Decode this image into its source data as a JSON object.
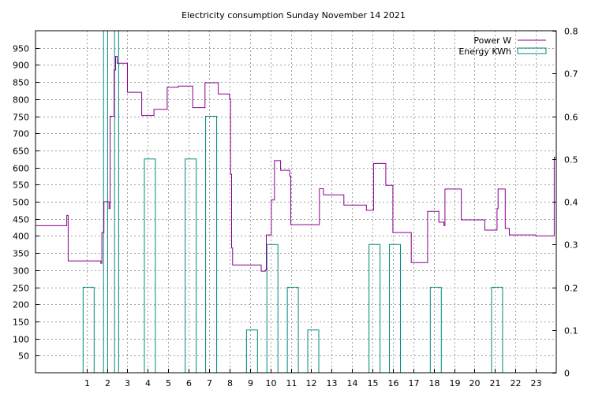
{
  "chart_data": {
    "type": "line",
    "title": "Electricity consumption Sunday November 14 2021",
    "x_ticks": [
      1,
      2,
      3,
      4,
      5,
      6,
      7,
      8,
      9,
      10,
      11,
      12,
      13,
      14,
      15,
      16,
      17,
      18,
      19,
      20,
      21,
      22,
      23
    ],
    "xlim": [
      -1.5,
      24.0
    ],
    "y_left": {
      "ticks": [
        50,
        100,
        150,
        200,
        250,
        300,
        350,
        400,
        450,
        500,
        550,
        600,
        650,
        700,
        750,
        800,
        850,
        900,
        950
      ],
      "ylim": [
        0,
        1000
      ]
    },
    "y_right": {
      "ticks": [
        "0",
        "0.1",
        "0.2",
        "0.3",
        "0.4",
        "0.5",
        "0.6",
        "0.7",
        "0.8"
      ],
      "ylim": [
        0,
        0.8
      ]
    },
    "grid": true,
    "legend_position": "top-right",
    "series": [
      {
        "name": "Power W",
        "axis": "left",
        "color": "#8B008B",
        "style": "step",
        "points": [
          [
            -1.5,
            430
          ],
          [
            0.03,
            430
          ],
          [
            0.03,
            460
          ],
          [
            0.1,
            460
          ],
          [
            0.1,
            327
          ],
          [
            1.7,
            327
          ],
          [
            1.7,
            320
          ],
          [
            1.75,
            320
          ],
          [
            1.75,
            410
          ],
          [
            1.85,
            410
          ],
          [
            1.85,
            500
          ],
          [
            2.1,
            500
          ],
          [
            2.1,
            480
          ],
          [
            2.15,
            480
          ],
          [
            2.15,
            750
          ],
          [
            2.35,
            750
          ],
          [
            2.35,
            885
          ],
          [
            2.42,
            885
          ],
          [
            2.42,
            925
          ],
          [
            2.5,
            925
          ],
          [
            2.5,
            905
          ],
          [
            3.0,
            905
          ],
          [
            3.0,
            820
          ],
          [
            3.7,
            820
          ],
          [
            3.7,
            752
          ],
          [
            4.3,
            752
          ],
          [
            4.3,
            770
          ],
          [
            4.95,
            770
          ],
          [
            4.95,
            835
          ],
          [
            5.5,
            835
          ],
          [
            5.5,
            838
          ],
          [
            6.2,
            838
          ],
          [
            6.2,
            775
          ],
          [
            6.8,
            775
          ],
          [
            6.8,
            848
          ],
          [
            7.45,
            848
          ],
          [
            7.45,
            815
          ],
          [
            8.0,
            815
          ],
          [
            8.0,
            800
          ],
          [
            8.05,
            800
          ],
          [
            8.05,
            580
          ],
          [
            8.1,
            580
          ],
          [
            8.1,
            365
          ],
          [
            8.15,
            365
          ],
          [
            8.15,
            315
          ],
          [
            9.55,
            315
          ],
          [
            9.55,
            297
          ],
          [
            9.75,
            297
          ],
          [
            9.75,
            300
          ],
          [
            9.8,
            300
          ],
          [
            9.8,
            403
          ],
          [
            10.05,
            403
          ],
          [
            10.05,
            505
          ],
          [
            10.2,
            505
          ],
          [
            10.2,
            620
          ],
          [
            10.5,
            620
          ],
          [
            10.5,
            592
          ],
          [
            10.95,
            592
          ],
          [
            10.95,
            575
          ],
          [
            11.0,
            575
          ],
          [
            11.0,
            433
          ],
          [
            12.4,
            433
          ],
          [
            12.4,
            538
          ],
          [
            12.6,
            538
          ],
          [
            12.6,
            520
          ],
          [
            13.6,
            520
          ],
          [
            13.6,
            490
          ],
          [
            14.7,
            490
          ],
          [
            14.7,
            475
          ],
          [
            15.05,
            475
          ],
          [
            15.05,
            612
          ],
          [
            15.65,
            612
          ],
          [
            15.65,
            548
          ],
          [
            16.0,
            548
          ],
          [
            16.0,
            410
          ],
          [
            16.9,
            410
          ],
          [
            16.9,
            322
          ],
          [
            17.7,
            322
          ],
          [
            17.7,
            472
          ],
          [
            18.25,
            472
          ],
          [
            18.25,
            440
          ],
          [
            18.5,
            440
          ],
          [
            18.5,
            430
          ],
          [
            18.55,
            430
          ],
          [
            18.55,
            537
          ],
          [
            19.35,
            537
          ],
          [
            19.35,
            447
          ],
          [
            20.5,
            447
          ],
          [
            20.5,
            417
          ],
          [
            21.1,
            417
          ],
          [
            21.1,
            480
          ],
          [
            21.15,
            480
          ],
          [
            21.15,
            537
          ],
          [
            21.5,
            537
          ],
          [
            21.5,
            422
          ],
          [
            21.7,
            422
          ],
          [
            21.7,
            403
          ],
          [
            23.0,
            403
          ],
          [
            23.0,
            400
          ],
          [
            23.9,
            400
          ],
          [
            23.9,
            630
          ],
          [
            24.0,
            630
          ]
        ]
      },
      {
        "name": "Energy KWh",
        "axis": "right",
        "color": "#00897B",
        "style": "bars",
        "bars": [
          {
            "x": 1.1,
            "value": 0.2
          },
          {
            "x": 2.1,
            "value": 0.8
          },
          {
            "x": 2.3,
            "value": 0.8
          },
          {
            "x": 4.1,
            "value": 0.5
          },
          {
            "x": 6.1,
            "value": 0.5
          },
          {
            "x": 7.1,
            "value": 0.6
          },
          {
            "x": 9.1,
            "value": 0.1
          },
          {
            "x": 10.1,
            "value": 0.3
          },
          {
            "x": 11.1,
            "value": 0.2
          },
          {
            "x": 12.1,
            "value": 0.1
          },
          {
            "x": 15.1,
            "value": 0.3
          },
          {
            "x": 16.1,
            "value": 0.3
          },
          {
            "x": 18.1,
            "value": 0.2
          },
          {
            "x": 21.1,
            "value": 0.2
          }
        ]
      }
    ]
  }
}
